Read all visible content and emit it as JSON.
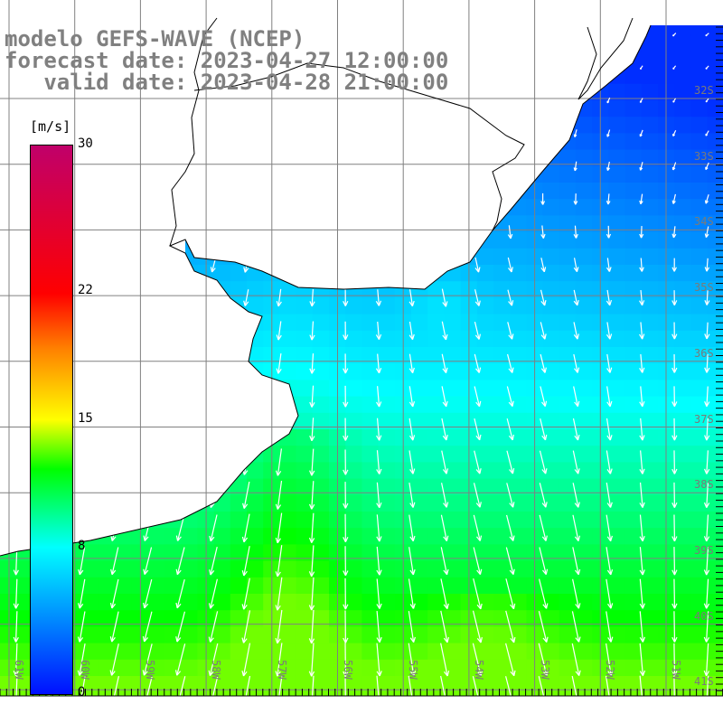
{
  "title": {
    "line1": "modelo GEFS-WAVE (NCEP)",
    "line2": "forecast date: 2023-04-27 12:00:00",
    "line3": "   valid date: 2023-04-28 21:00:00"
  },
  "colorbar": {
    "unit": "[m/s]",
    "ticks": [
      {
        "value": 30,
        "label": "30"
      },
      {
        "value": 22,
        "label": "22"
      },
      {
        "value": 15,
        "label": "15"
      },
      {
        "value": 8,
        "label": "8"
      },
      {
        "value": 0,
        "label": "0"
      }
    ],
    "min": 0,
    "max": 30
  },
  "latitudes": [
    "32S",
    "33S",
    "34S",
    "35S",
    "36S",
    "37S",
    "38S",
    "39S",
    "40S",
    "41S"
  ],
  "longitudes": [
    "61W",
    "60W",
    "59W",
    "58W",
    "57W",
    "56W",
    "55W",
    "54W",
    "53W",
    "52W",
    "51W"
  ],
  "colors": {
    "land": "#ffffff",
    "coast": "#000000",
    "grid": "#808080",
    "arrow": "#ffffff"
  }
}
